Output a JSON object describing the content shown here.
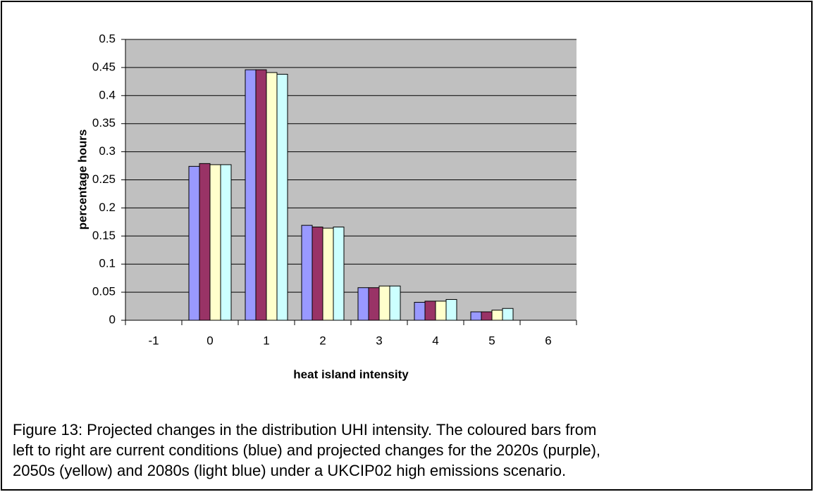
{
  "chart_data": {
    "type": "bar",
    "x_label": "heat island intensity",
    "y_label": "percentage hours",
    "categories": [
      "-1",
      "0",
      "1",
      "2",
      "3",
      "4",
      "5",
      "6"
    ],
    "series": [
      {
        "color": "#9999ff",
        "values": [
          0,
          0.274,
          0.446,
          0.169,
          0.058,
          0.032,
          0.015,
          0
        ]
      },
      {
        "color": "#993366",
        "values": [
          0,
          0.279,
          0.446,
          0.166,
          0.058,
          0.034,
          0.015,
          0
        ]
      },
      {
        "color": "#ffffcc",
        "values": [
          0,
          0.277,
          0.441,
          0.164,
          0.061,
          0.034,
          0.018,
          0
        ]
      },
      {
        "color": "#ccffff",
        "values": [
          0,
          0.277,
          0.438,
          0.166,
          0.061,
          0.037,
          0.021,
          0
        ]
      }
    ],
    "ylim": [
      0,
      0.5
    ],
    "yticks": [
      0,
      0.05,
      0.1,
      0.15,
      0.2,
      0.25,
      0.3,
      0.35,
      0.4,
      0.45,
      0.5
    ],
    "grid": true,
    "plot_background": "#c0c0c0"
  },
  "caption": [
    "Figure 13: Projected changes in the distribution UHI intensity. The coloured bars from",
    "left to right are current conditions (blue) and projected changes for the 2020s (purple),",
    "2050s (yellow) and 2080s (light blue) under a UKCIP02 high emissions scenario."
  ]
}
